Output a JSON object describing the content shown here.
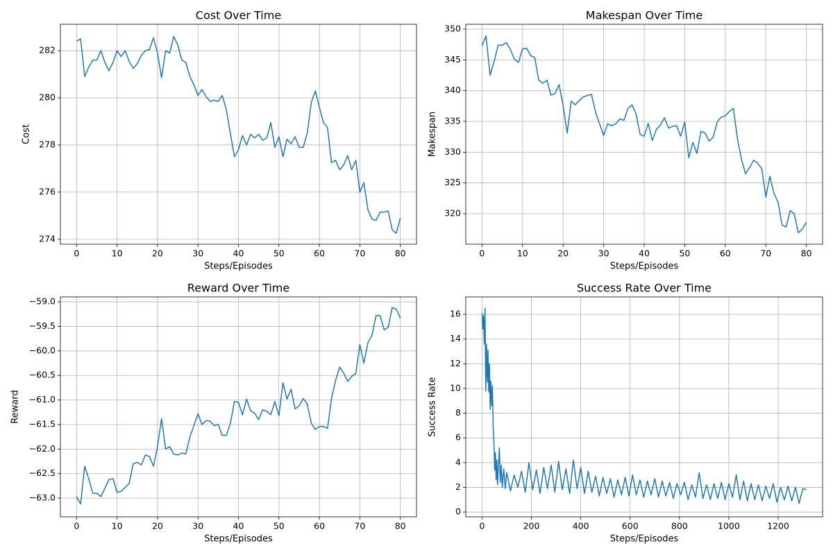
{
  "chart_data": [
    {
      "type": "line",
      "title": "Cost Over Time",
      "xlabel": "Steps/Episodes",
      "ylabel": "Cost",
      "color": "#1f77b4",
      "grid": true,
      "xlim": [
        -4,
        84
      ],
      "ylim": [
        273.79,
        283.12
      ],
      "xticks": [
        0,
        10,
        20,
        30,
        40,
        50,
        60,
        70,
        80
      ],
      "yticks": [
        274,
        276,
        278,
        280,
        282
      ],
      "x": [
        0,
        1,
        2,
        3,
        4,
        5,
        6,
        7,
        8,
        9,
        10,
        11,
        12,
        13,
        14,
        15,
        16,
        17,
        18,
        19,
        20,
        21,
        22,
        23,
        24,
        25,
        26,
        27,
        28,
        29,
        30,
        31,
        32,
        33,
        34,
        35,
        36,
        37,
        38,
        39,
        40,
        41,
        42,
        43,
        44,
        45,
        46,
        47,
        48,
        49,
        50,
        51,
        52,
        53,
        54,
        55,
        56,
        57,
        58,
        59,
        60,
        61,
        62,
        63,
        64,
        65,
        66,
        67,
        68,
        69,
        70,
        71,
        72,
        73,
        74,
        75,
        76,
        77,
        78,
        79,
        80
      ],
      "values": [
        282.4,
        282.5,
        280.9,
        281.3,
        281.6,
        281.6,
        282.0,
        281.5,
        281.15,
        281.5,
        282.0,
        281.75,
        282.0,
        281.55,
        281.25,
        281.45,
        281.8,
        282.0,
        282.05,
        282.55,
        281.9,
        280.85,
        282.0,
        281.9,
        282.6,
        282.25,
        281.6,
        281.5,
        280.9,
        280.55,
        280.1,
        280.35,
        280.05,
        279.85,
        279.9,
        279.85,
        280.1,
        279.5,
        278.5,
        277.5,
        277.8,
        278.4,
        278.0,
        278.45,
        278.3,
        278.45,
        278.2,
        278.3,
        278.95,
        277.9,
        278.35,
        277.5,
        278.25,
        278.05,
        278.35,
        277.9,
        277.9,
        278.5,
        279.8,
        280.3,
        279.6,
        278.95,
        278.75,
        277.25,
        277.35,
        276.95,
        277.15,
        277.55,
        276.95,
        277.35,
        276.0,
        276.4,
        275.25,
        274.85,
        274.8,
        275.15,
        275.15,
        275.2,
        274.4,
        274.25,
        274.9
      ]
    },
    {
      "type": "line",
      "title": "Makespan Over Time",
      "xlabel": "Steps/Episodes",
      "ylabel": "Makespan",
      "color": "#1f77b4",
      "grid": true,
      "xlim": [
        -4,
        84
      ],
      "ylim": [
        315.04,
        350.79
      ],
      "xticks": [
        0,
        10,
        20,
        30,
        40,
        50,
        60,
        70,
        80
      ],
      "yticks": [
        320,
        325,
        330,
        335,
        340,
        345,
        350
      ],
      "x": [
        0,
        1,
        2,
        3,
        4,
        5,
        6,
        7,
        8,
        9,
        10,
        11,
        12,
        13,
        14,
        15,
        16,
        17,
        18,
        19,
        20,
        21,
        22,
        23,
        24,
        25,
        26,
        27,
        28,
        29,
        30,
        31,
        32,
        33,
        34,
        35,
        36,
        37,
        38,
        39,
        40,
        41,
        42,
        43,
        44,
        45,
        46,
        47,
        48,
        49,
        50,
        51,
        52,
        53,
        54,
        55,
        56,
        57,
        58,
        59,
        60,
        61,
        62,
        63,
        64,
        65,
        66,
        67,
        68,
        69,
        70,
        71,
        72,
        73,
        74,
        75,
        76,
        77,
        78,
        79,
        80
      ],
      "values": [
        347.3,
        348.9,
        342.5,
        344.8,
        347.4,
        347.4,
        347.8,
        346.7,
        345.1,
        344.6,
        346.8,
        346.9,
        345.7,
        345.4,
        341.7,
        341.2,
        341.7,
        339.3,
        339.5,
        341.0,
        337.6,
        333.1,
        338.3,
        337.7,
        338.4,
        339.0,
        339.2,
        339.4,
        336.5,
        334.6,
        332.7,
        334.6,
        334.3,
        334.6,
        335.4,
        335.2,
        337.1,
        337.7,
        336.2,
        332.9,
        332.6,
        334.7,
        331.9,
        333.7,
        334.4,
        335.6,
        333.9,
        334.2,
        334.3,
        332.6,
        334.9,
        329.1,
        331.6,
        329.8,
        333.4,
        333.1,
        331.8,
        332.4,
        334.9,
        335.7,
        335.9,
        336.6,
        337.1,
        332.2,
        328.8,
        326.5,
        327.5,
        328.7,
        328.2,
        327.3,
        322.7,
        326.1,
        323.3,
        321.9,
        318.2,
        317.8,
        320.5,
        320.0,
        316.9,
        317.5,
        318.6
      ]
    },
    {
      "type": "line",
      "title": "Reward Over Time",
      "xlabel": "Steps/Episodes",
      "ylabel": "Reward",
      "color": "#1f77b4",
      "grid": true,
      "xlim": [
        -4,
        84
      ],
      "ylim": [
        -63.38,
        -58.9
      ],
      "xticks": [
        0,
        10,
        20,
        30,
        40,
        50,
        60,
        70,
        80
      ],
      "yticks": [
        {
          "value": -63.0,
          "label": "−63.0"
        },
        {
          "value": -62.5,
          "label": "−62.5"
        },
        {
          "value": -62.0,
          "label": "−62.0"
        },
        {
          "value": -61.5,
          "label": "−61.5"
        },
        {
          "value": -61.0,
          "label": "−61.0"
        },
        {
          "value": -60.5,
          "label": "−60.5"
        },
        {
          "value": -60.0,
          "label": "−60.0"
        },
        {
          "value": -59.5,
          "label": "−59.5"
        },
        {
          "value": -59.0,
          "label": "−59.0"
        }
      ],
      "x": [
        0,
        1,
        2,
        3,
        4,
        5,
        6,
        7,
        8,
        9,
        10,
        11,
        12,
        13,
        14,
        15,
        16,
        17,
        18,
        19,
        20,
        21,
        22,
        23,
        24,
        25,
        26,
        27,
        28,
        29,
        30,
        31,
        32,
        33,
        34,
        35,
        36,
        37,
        38,
        39,
        40,
        41,
        42,
        43,
        44,
        45,
        46,
        47,
        48,
        49,
        50,
        51,
        52,
        53,
        54,
        55,
        56,
        57,
        58,
        59,
        60,
        61,
        62,
        63,
        64,
        65,
        66,
        67,
        68,
        69,
        70,
        71,
        72,
        73,
        74,
        75,
        76,
        77,
        78,
        79,
        80
      ],
      "values": [
        -62.97,
        -63.12,
        -62.35,
        -62.6,
        -62.9,
        -62.9,
        -62.97,
        -62.8,
        -62.62,
        -62.6,
        -62.88,
        -62.86,
        -62.78,
        -62.7,
        -62.3,
        -62.27,
        -62.32,
        -62.12,
        -62.15,
        -62.35,
        -61.95,
        -61.38,
        -62.0,
        -61.95,
        -62.1,
        -62.12,
        -62.08,
        -62.1,
        -61.75,
        -61.52,
        -61.28,
        -61.5,
        -61.42,
        -61.43,
        -61.52,
        -61.5,
        -61.72,
        -61.72,
        -61.48,
        -61.03,
        -61.05,
        -61.3,
        -60.98,
        -61.22,
        -61.27,
        -61.4,
        -61.2,
        -61.23,
        -61.3,
        -61.03,
        -61.32,
        -60.65,
        -60.98,
        -60.78,
        -61.18,
        -61.12,
        -60.97,
        -61.08,
        -61.47,
        -61.6,
        -61.54,
        -61.54,
        -61.58,
        -60.97,
        -60.6,
        -60.33,
        -60.45,
        -60.62,
        -60.52,
        -60.46,
        -59.87,
        -60.25,
        -59.83,
        -59.68,
        -59.28,
        -59.28,
        -59.57,
        -59.52,
        -59.12,
        -59.15,
        -59.33
      ]
    },
    {
      "type": "line",
      "title": "Success Rate Over Time",
      "xlabel": "Steps/Episodes",
      "ylabel": "Success Rate",
      "color": "#1f77b4",
      "grid": true,
      "xlim": [
        -66,
        1380
      ],
      "ylim": [
        -0.39,
        17.41
      ],
      "xticks": [
        0,
        200,
        400,
        600,
        800,
        1000,
        1200
      ],
      "yticks": [
        0,
        2,
        4,
        6,
        8,
        10,
        12,
        14,
        16
      ],
      "x": [
        0,
        3,
        6,
        9,
        12,
        15,
        18,
        21,
        24,
        27,
        30,
        33,
        36,
        39,
        42,
        45,
        48,
        51,
        54,
        57,
        60,
        63,
        66,
        70,
        74,
        78,
        82,
        88,
        94,
        100,
        115,
        130,
        145,
        160,
        175,
        190,
        205,
        220,
        235,
        250,
        265,
        280,
        295,
        310,
        325,
        340,
        355,
        370,
        385,
        400,
        415,
        430,
        445,
        460,
        475,
        490,
        505,
        520,
        535,
        550,
        565,
        580,
        595,
        610,
        625,
        640,
        655,
        670,
        685,
        700,
        715,
        730,
        745,
        760,
        775,
        790,
        805,
        820,
        835,
        850,
        865,
        880,
        895,
        910,
        925,
        940,
        955,
        970,
        985,
        1000,
        1015,
        1030,
        1045,
        1060,
        1075,
        1090,
        1105,
        1120,
        1135,
        1150,
        1165,
        1180,
        1195,
        1210,
        1225,
        1240,
        1255,
        1270,
        1285,
        1300,
        1314
      ],
      "values": [
        16.1,
        14.8,
        15.9,
        13.6,
        16.5,
        9.8,
        13.6,
        10.5,
        13.1,
        9.7,
        12.0,
        8.3,
        10.6,
        8.6,
        10.2,
        6.8,
        5.7,
        3.4,
        4.8,
        2.6,
        4.2,
        2.2,
        3.6,
        5.2,
        2.4,
        3.8,
        2.0,
        3.5,
        1.9,
        3.2,
        1.7,
        3.0,
        2.0,
        3.3,
        1.6,
        4.0,
        1.8,
        3.4,
        1.5,
        3.6,
        1.9,
        3.8,
        1.6,
        4.1,
        1.8,
        3.5,
        1.5,
        4.2,
        1.9,
        3.6,
        1.5,
        3.3,
        1.6,
        2.9,
        1.3,
        2.8,
        1.5,
        2.7,
        1.2,
        2.6,
        1.4,
        2.8,
        1.3,
        3.0,
        1.4,
        2.6,
        1.2,
        2.5,
        1.4,
        2.7,
        1.2,
        2.5,
        1.3,
        2.4,
        1.1,
        2.3,
        1.4,
        2.4,
        1.0,
        2.2,
        1.2,
        3.2,
        1.1,
        2.2,
        1.0,
        2.3,
        1.1,
        2.4,
        1.0,
        2.3,
        1.2,
        3.0,
        1.0,
        2.5,
        0.9,
        2.3,
        1.0,
        2.2,
        0.9,
        2.1,
        1.1,
        2.3,
        0.8,
        2.0,
        1.0,
        2.1,
        0.9,
        2.0,
        0.7,
        1.9,
        1.8
      ]
    }
  ]
}
